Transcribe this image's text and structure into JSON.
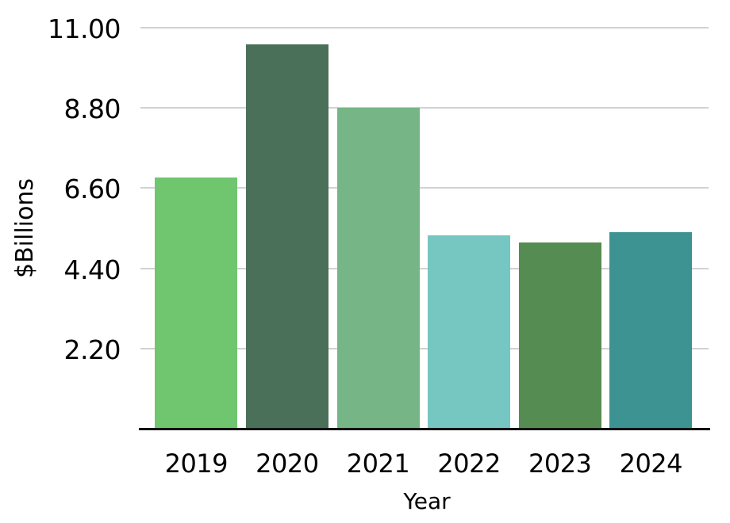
{
  "chart_data": {
    "type": "bar",
    "title": "",
    "xlabel": "Year",
    "ylabel": "$Billions",
    "categories": [
      "2019",
      "2020",
      "2021",
      "2022",
      "2023",
      "2024"
    ],
    "values": [
      6.9,
      10.55,
      8.8,
      5.3,
      5.1,
      5.4
    ],
    "bar_colors": [
      "#70c66e",
      "#4a7059",
      "#76b586",
      "#76c6c1",
      "#558c51",
      "#3d9392"
    ],
    "ylim": [
      0,
      11
    ],
    "yticks": [
      2.2,
      4.4,
      6.6,
      8.8,
      11.0
    ],
    "ytick_labels": [
      "2.20",
      "4.40",
      "6.60",
      "8.80",
      "11.00"
    ],
    "grid": "horizontal-only",
    "legend": "none"
  },
  "colors": {
    "background": "#ffffff",
    "gridline": "#d2d2d2",
    "axis_line": "#111111",
    "text": "#000000"
  }
}
